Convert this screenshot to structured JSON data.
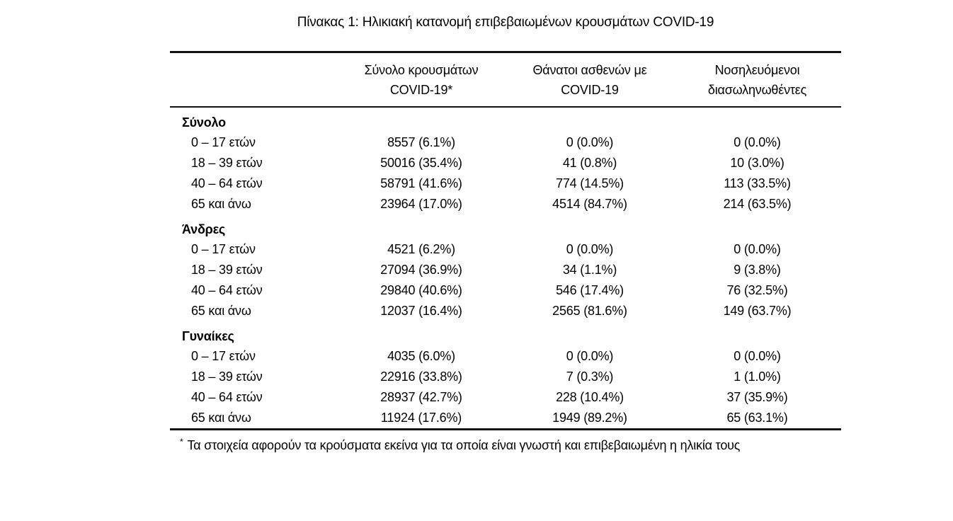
{
  "page": {
    "background": "#ffffff",
    "text_color": "#000000",
    "rule_color": "#111111"
  },
  "title": "Πίνακας 1: Ηλικιακή κατανομή επιβεβαιωμένων κρουσμάτων COVID-19",
  "table": {
    "columns": [
      {
        "line1": "Σύνολο κρουσμάτων",
        "line2": "COVID-19*"
      },
      {
        "line1": "Θάνατοι ασθενών με",
        "line2": "COVID-19"
      },
      {
        "line1": "Νοσηλευόμενοι",
        "line2": "διασωληνωθέντες"
      }
    ],
    "groups": [
      {
        "label": "Σύνολο",
        "rows": [
          {
            "age": "0 – 17 ετών",
            "values": [
              "8557 (6.1%)",
              "0 (0.0%)",
              "0 (0.0%)"
            ]
          },
          {
            "age": "18 – 39 ετών",
            "values": [
              "50016 (35.4%)",
              "41 (0.8%)",
              "10 (3.0%)"
            ]
          },
          {
            "age": "40 – 64 ετών",
            "values": [
              "58791 (41.6%)",
              "774 (14.5%)",
              "113 (33.5%)"
            ]
          },
          {
            "age": "65 και άνω",
            "values": [
              "23964 (17.0%)",
              "4514 (84.7%)",
              "214 (63.5%)"
            ]
          }
        ]
      },
      {
        "label": "Άνδρες",
        "rows": [
          {
            "age": "0 – 17 ετών",
            "values": [
              "4521 (6.2%)",
              "0 (0.0%)",
              "0 (0.0%)"
            ]
          },
          {
            "age": "18 – 39 ετών",
            "values": [
              "27094 (36.9%)",
              "34 (1.1%)",
              "9 (3.8%)"
            ]
          },
          {
            "age": "40 – 64 ετών",
            "values": [
              "29840 (40.6%)",
              "546 (17.4%)",
              "76 (32.5%)"
            ]
          },
          {
            "age": "65 και άνω",
            "values": [
              "12037 (16.4%)",
              "2565 (81.6%)",
              "149 (63.7%)"
            ]
          }
        ]
      },
      {
        "label": "Γυναίκες",
        "rows": [
          {
            "age": "0 – 17 ετών",
            "values": [
              "4035 (6.0%)",
              "0 (0.0%)",
              "0 (0.0%)"
            ]
          },
          {
            "age": "18 – 39 ετών",
            "values": [
              "22916 (33.8%)",
              "7 (0.3%)",
              "1 (1.0%)"
            ]
          },
          {
            "age": "40 – 64 ετών",
            "values": [
              "28937 (42.7%)",
              "228 (10.4%)",
              "37 (35.9%)"
            ]
          },
          {
            "age": "65 και άνω",
            "values": [
              "11924 (17.6%)",
              "1949 (89.2%)",
              "65 (63.1%)"
            ]
          }
        ]
      }
    ]
  },
  "footnote": {
    "marker": "*",
    "text": "Τα στοιχεία αφορούν τα κρούσματα εκείνα για τα οποία είναι γνωστή και επιβεβαιωμένη η ηλικία τους"
  }
}
